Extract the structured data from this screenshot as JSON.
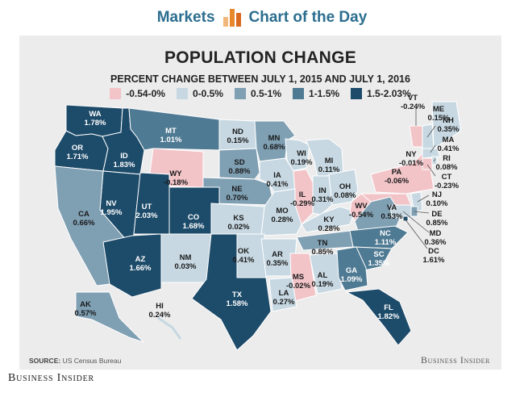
{
  "header": {
    "left": "Markets",
    "right": "Chart of the Day",
    "logo_colors": [
      "#f2b77a",
      "#e8882d",
      "#d9691f"
    ]
  },
  "title": "POPULATION CHANGE",
  "subtitle": "PERCENT CHANGE BETWEEN JULY 1, 2015 AND JULY 1, 2016",
  "legend": [
    {
      "label": "-0.54-0%",
      "color": "#f2c4c8"
    },
    {
      "label": "0-0.5%",
      "color": "#c7d8e2"
    },
    {
      "label": "0.5-1%",
      "color": "#7f9fb3"
    },
    {
      "label": "1-1.5%",
      "color": "#4f7a93"
    },
    {
      "label": "1.5-2.03%",
      "color": "#1d4b6a"
    }
  ],
  "states": [
    {
      "abbr": "WA",
      "value": "1.78%",
      "color": "#1d4b6a"
    },
    {
      "abbr": "OR",
      "value": "1.71%",
      "color": "#1d4b6a"
    },
    {
      "abbr": "ID",
      "value": "1.83%",
      "color": "#1d4b6a"
    },
    {
      "abbr": "MT",
      "value": "1.01%",
      "color": "#4f7a93"
    },
    {
      "abbr": "ND",
      "value": "0.15%",
      "color": "#c7d8e2"
    },
    {
      "abbr": "MN",
      "value": "0.68%",
      "color": "#7f9fb3"
    },
    {
      "abbr": "WI",
      "value": "0.19%",
      "color": "#c7d8e2"
    },
    {
      "abbr": "MI",
      "value": "0.11%",
      "color": "#c7d8e2"
    },
    {
      "abbr": "WY",
      "value": "-0.18%",
      "color": "#f2c4c8"
    },
    {
      "abbr": "SD",
      "value": "0.88%",
      "color": "#7f9fb3"
    },
    {
      "abbr": "NE",
      "value": "0.70%",
      "color": "#7f9fb3"
    },
    {
      "abbr": "IA",
      "value": "0.41%",
      "color": "#c7d8e2"
    },
    {
      "abbr": "IL",
      "value": "-0.29%",
      "color": "#f2c4c8"
    },
    {
      "abbr": "IN",
      "value": "0.31%",
      "color": "#c7d8e2"
    },
    {
      "abbr": "OH",
      "value": "0.08%",
      "color": "#c7d8e2"
    },
    {
      "abbr": "PA",
      "value": "-0.06%",
      "color": "#f2c4c8"
    },
    {
      "abbr": "NY",
      "value": "-0.01%",
      "color": "#f2c4c8"
    },
    {
      "abbr": "VT",
      "value": "-0.24%",
      "color": "#f2c4c8"
    },
    {
      "abbr": "ME",
      "value": "0.15%",
      "color": "#c7d8e2"
    },
    {
      "abbr": "NV",
      "value": "1.95%",
      "color": "#1d4b6a"
    },
    {
      "abbr": "UT",
      "value": "2.03%",
      "color": "#1d4b6a"
    },
    {
      "abbr": "CO",
      "value": "1.68%",
      "color": "#1d4b6a"
    },
    {
      "abbr": "CA",
      "value": "0.66%",
      "color": "#7f9fb3"
    },
    {
      "abbr": "KS",
      "value": "0.02%",
      "color": "#c7d8e2"
    },
    {
      "abbr": "MO",
      "value": "0.28%",
      "color": "#c7d8e2"
    },
    {
      "abbr": "KY",
      "value": "0.28%",
      "color": "#c7d8e2"
    },
    {
      "abbr": "WV",
      "value": "-0.54%",
      "color": "#f2c4c8"
    },
    {
      "abbr": "VA",
      "value": "0.53%",
      "color": "#7f9fb3"
    },
    {
      "abbr": "NC",
      "value": "1.11%",
      "color": "#4f7a93"
    },
    {
      "abbr": "TN",
      "value": "0.85%",
      "color": "#7f9fb3"
    },
    {
      "abbr": "SC",
      "value": "1.35%",
      "color": "#4f7a93"
    },
    {
      "abbr": "AZ",
      "value": "1.66%",
      "color": "#1d4b6a"
    },
    {
      "abbr": "NM",
      "value": "0.03%",
      "color": "#c7d8e2"
    },
    {
      "abbr": "OK",
      "value": "0.41%",
      "color": "#c7d8e2"
    },
    {
      "abbr": "AR",
      "value": "0.35%",
      "color": "#c7d8e2"
    },
    {
      "abbr": "MS",
      "value": "-0.02%",
      "color": "#f2c4c8"
    },
    {
      "abbr": "AL",
      "value": "0.19%",
      "color": "#c7d8e2"
    },
    {
      "abbr": "GA",
      "value": "1.09%",
      "color": "#4f7a93"
    },
    {
      "abbr": "TX",
      "value": "1.58%",
      "color": "#1d4b6a"
    },
    {
      "abbr": "LA",
      "value": "0.27%",
      "color": "#c7d8e2"
    },
    {
      "abbr": "FL",
      "value": "1.82%",
      "color": "#1d4b6a"
    },
    {
      "abbr": "AK",
      "value": "0.57%",
      "color": "#7f9fb3"
    },
    {
      "abbr": "HI",
      "value": "0.24%",
      "color": "#c7d8e2"
    },
    {
      "abbr": "NH",
      "value": "0.35%",
      "color": "#c7d8e2"
    },
    {
      "abbr": "MA",
      "value": "0.41%",
      "color": "#c7d8e2"
    },
    {
      "abbr": "RI",
      "value": "0.08%",
      "color": "#c7d8e2"
    },
    {
      "abbr": "CT",
      "value": "-0.23%",
      "color": "#f2c4c8"
    },
    {
      "abbr": "NJ",
      "value": "0.10%",
      "color": "#c7d8e2"
    },
    {
      "abbr": "DE",
      "value": "0.85%",
      "color": "#7f9fb3"
    },
    {
      "abbr": "MD",
      "value": "0.36%",
      "color": "#c7d8e2"
    },
    {
      "abbr": "DC",
      "value": "1.61%",
      "color": "#1d4b6a"
    }
  ],
  "source": {
    "label": "SOURCE:",
    "text": " US Census Bureau"
  },
  "brand_inner": "Business Insider",
  "brand_outer": "Business Insider"
}
